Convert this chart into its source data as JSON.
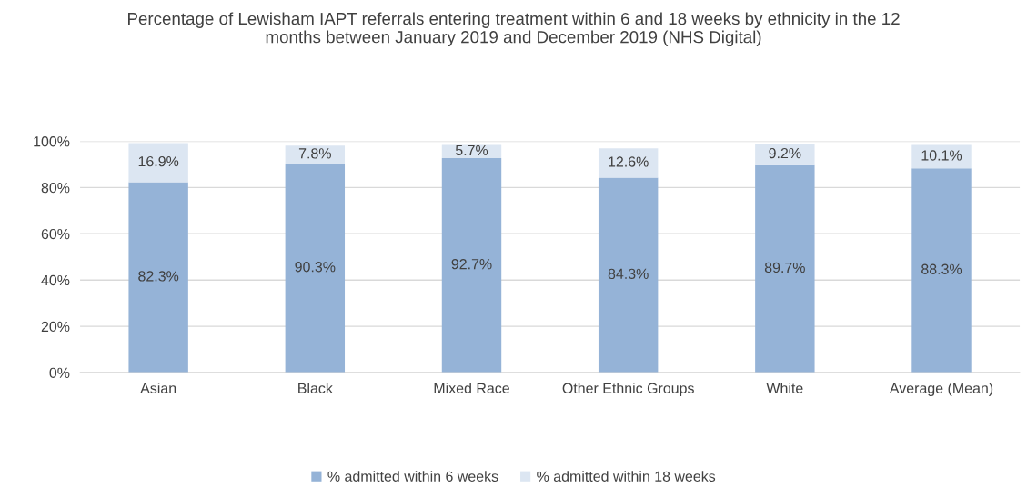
{
  "chart_data": {
    "type": "bar",
    "stacked": true,
    "title": "Percentage of Lewisham IAPT referrals entering treatment within 6 and 18 weeks by ethnicity in the 12 months between January 2019 and December 2019 (NHS Digital)",
    "categories": [
      "Asian",
      "Black",
      "Mixed Race",
      "Other Ethnic Groups",
      "White",
      "Average (Mean)"
    ],
    "series": [
      {
        "name": "% admitted within 6 weeks",
        "color": "#95b3d7",
        "values": [
          82.3,
          90.3,
          92.7,
          84.3,
          89.7,
          88.3
        ],
        "value_labels": [
          "82.3%",
          "90.3%",
          "92.7%",
          "84.3%",
          "89.7%",
          "88.3%"
        ]
      },
      {
        "name": "% admitted within 18 weeks",
        "color": "#dce6f2",
        "values": [
          16.9,
          7.8,
          5.7,
          12.6,
          9.2,
          10.1
        ],
        "value_labels": [
          "16.9%",
          "7.8%",
          "5.7%",
          "12.6%",
          "9.2%",
          "10.1%"
        ]
      }
    ],
    "ylim": [
      0,
      100
    ],
    "yticks": [
      {
        "value": 0,
        "label": "0%"
      },
      {
        "value": 20,
        "label": "20%"
      },
      {
        "value": 40,
        "label": "40%"
      },
      {
        "value": 60,
        "label": "60%"
      },
      {
        "value": 80,
        "label": "80%"
      },
      {
        "value": 100,
        "label": "100%"
      }
    ],
    "grid": "y",
    "legend": "bottom"
  }
}
